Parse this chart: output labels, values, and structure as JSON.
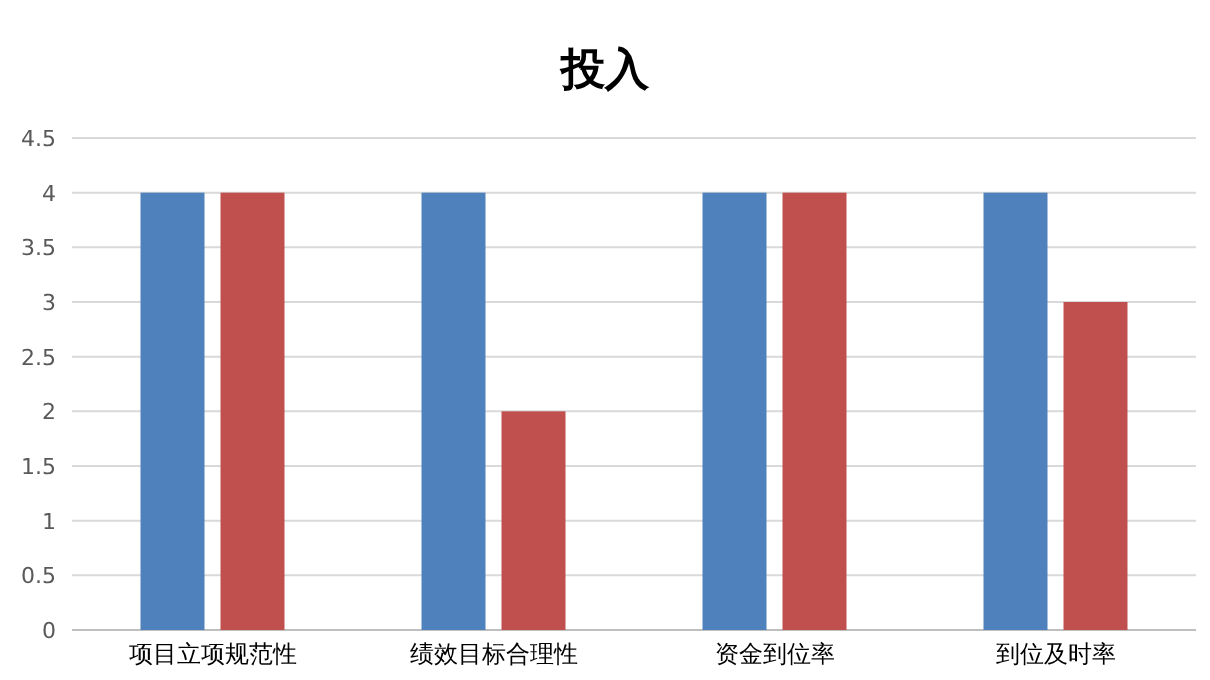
{
  "chart_data": {
    "type": "bar",
    "title": "投入",
    "categories": [
      "项目立项规范性",
      "绩效目标合理性",
      "资金到位率",
      "到位及时率"
    ],
    "series": [
      {
        "color": "#4f81bd",
        "values": [
          4,
          4,
          4,
          4
        ]
      },
      {
        "color": "#c0504d",
        "values": [
          4,
          2,
          4,
          3
        ]
      }
    ],
    "ylim": [
      0,
      4.5
    ],
    "yticks": [
      0,
      0.5,
      1,
      1.5,
      2,
      2.5,
      3,
      3.5,
      4,
      4.5
    ],
    "grid": "y"
  }
}
